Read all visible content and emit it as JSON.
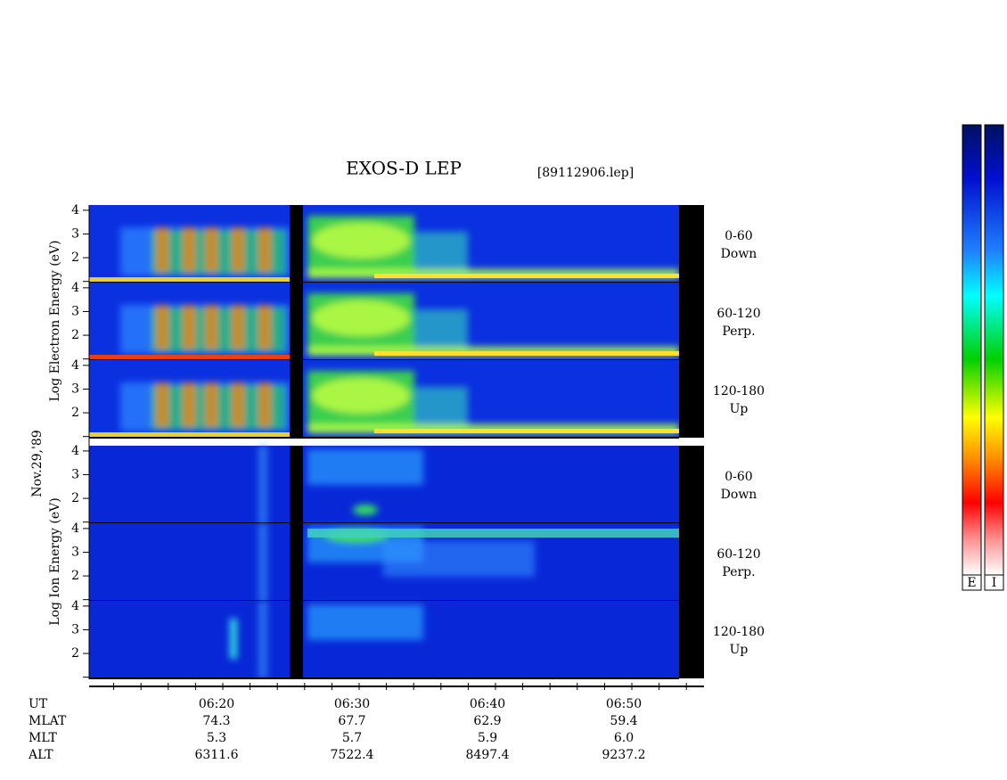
{
  "title": "EXOS-D LEP",
  "file": "[89112906.lep]",
  "date": "Nov.29,'89",
  "electron_label": "Log Electron Energy (eV)",
  "ion_label": "Log Ion Energy (eV)",
  "energy_tick_labels": [
    "4",
    "3",
    "2"
  ],
  "pitch_angles": [
    {
      "range": "0-60",
      "direction": "Down"
    },
    {
      "range": "60-120",
      "direction": "Perp."
    },
    {
      "range": "120-180",
      "direction": "Up"
    }
  ],
  "orbit_table": {
    "rows": [
      [
        "UT",
        "06:20",
        "06:30",
        "06:40",
        "06:50"
      ],
      [
        "MLAT",
        "74.3",
        "67.7",
        "62.9",
        "59.4"
      ],
      [
        "MLT",
        "5.3",
        "5.7",
        "5.9",
        "6.0"
      ],
      [
        "ALT",
        "6311.6",
        "7522.4",
        "8497.4",
        "9237.2"
      ]
    ]
  },
  "colorbar_labels": [
    "E",
    "I"
  ]
}
